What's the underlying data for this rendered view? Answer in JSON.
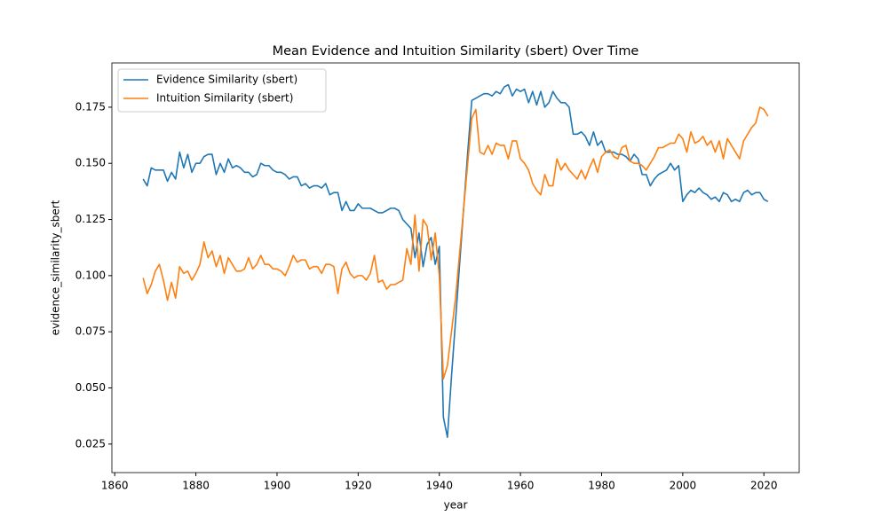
{
  "chart_data": {
    "type": "line",
    "title": "Mean Evidence and Intuition Similarity (sbert) Over Time",
    "xlabel": "year",
    "ylabel": "evidence_similarity_sbert",
    "x": [
      1867,
      1868,
      1869,
      1870,
      1871,
      1872,
      1873,
      1874,
      1875,
      1876,
      1877,
      1878,
      1879,
      1880,
      1881,
      1882,
      1883,
      1884,
      1885,
      1886,
      1887,
      1888,
      1889,
      1890,
      1891,
      1892,
      1893,
      1894,
      1895,
      1896,
      1897,
      1898,
      1899,
      1900,
      1901,
      1902,
      1903,
      1904,
      1905,
      1906,
      1907,
      1908,
      1909,
      1910,
      1911,
      1912,
      1913,
      1914,
      1915,
      1916,
      1917,
      1918,
      1919,
      1920,
      1921,
      1922,
      1923,
      1924,
      1925,
      1926,
      1927,
      1928,
      1929,
      1930,
      1931,
      1932,
      1933,
      1934,
      1935,
      1936,
      1937,
      1938,
      1939,
      1940,
      1941,
      1942,
      1943,
      1944,
      1945,
      1946,
      1947,
      1948,
      1949,
      1950,
      1951,
      1952,
      1953,
      1954,
      1955,
      1956,
      1957,
      1958,
      1959,
      1960,
      1961,
      1962,
      1963,
      1964,
      1965,
      1966,
      1967,
      1968,
      1969,
      1970,
      1971,
      1972,
      1973,
      1974,
      1975,
      1976,
      1977,
      1978,
      1979,
      1980,
      1981,
      1982,
      1983,
      1984,
      1985,
      1986,
      1987,
      1988,
      1989,
      1990,
      1991,
      1992,
      1993,
      1994,
      1995,
      1996,
      1997,
      1998,
      1999,
      2000,
      2001,
      2002,
      2003,
      2004,
      2005,
      2006,
      2007,
      2008,
      2009,
      2010,
      2011,
      2012,
      2013,
      2014,
      2015,
      2016,
      2017,
      2018,
      2019,
      2020,
      2021
    ],
    "series": [
      {
        "name": "Evidence Similarity (sbert)",
        "color": "#1f77b4",
        "values": [
          0.143,
          0.14,
          0.148,
          0.147,
          0.147,
          0.147,
          0.142,
          0.146,
          0.143,
          0.155,
          0.148,
          0.154,
          0.146,
          0.15,
          0.15,
          0.153,
          0.154,
          0.154,
          0.145,
          0.15,
          0.146,
          0.152,
          0.148,
          0.149,
          0.148,
          0.146,
          0.146,
          0.144,
          0.145,
          0.15,
          0.149,
          0.149,
          0.147,
          0.146,
          0.146,
          0.145,
          0.143,
          0.144,
          0.144,
          0.14,
          0.141,
          0.139,
          0.14,
          0.14,
          0.139,
          0.141,
          0.136,
          0.137,
          0.137,
          0.129,
          0.133,
          0.129,
          0.129,
          0.132,
          0.13,
          0.13,
          0.13,
          0.129,
          0.128,
          0.128,
          0.129,
          0.13,
          0.13,
          0.129,
          0.125,
          0.123,
          0.121,
          0.108,
          0.119,
          0.104,
          0.114,
          0.117,
          0.105,
          0.113,
          0.037,
          0.028,
          0.055,
          0.08,
          0.105,
          0.13,
          0.155,
          0.178,
          0.179,
          0.18,
          0.181,
          0.181,
          0.18,
          0.182,
          0.181,
          0.184,
          0.185,
          0.18,
          0.183,
          0.182,
          0.183,
          0.177,
          0.182,
          0.176,
          0.182,
          0.175,
          0.177,
          0.182,
          0.179,
          0.177,
          0.177,
          0.175,
          0.163,
          0.163,
          0.164,
          0.162,
          0.158,
          0.164,
          0.158,
          0.16,
          0.155,
          0.155,
          0.155,
          0.154,
          0.154,
          0.153,
          0.151,
          0.154,
          0.152,
          0.145,
          0.145,
          0.14,
          0.143,
          0.145,
          0.146,
          0.147,
          0.15,
          0.147,
          0.149,
          0.133,
          0.136,
          0.138,
          0.137,
          0.139,
          0.137,
          0.136,
          0.134,
          0.135,
          0.133,
          0.137,
          0.136,
          0.133,
          0.134,
          0.133,
          0.137,
          0.138,
          0.136,
          0.137,
          0.137,
          0.134,
          0.133
        ]
      },
      {
        "name": "Intuition Similarity (sbert)",
        "color": "#ff7f0e",
        "values": [
          0.099,
          0.092,
          0.096,
          0.102,
          0.105,
          0.098,
          0.089,
          0.097,
          0.09,
          0.104,
          0.101,
          0.102,
          0.098,
          0.101,
          0.105,
          0.115,
          0.108,
          0.111,
          0.104,
          0.109,
          0.101,
          0.108,
          0.105,
          0.102,
          0.102,
          0.103,
          0.108,
          0.103,
          0.105,
          0.109,
          0.105,
          0.105,
          0.103,
          0.103,
          0.102,
          0.1,
          0.104,
          0.109,
          0.106,
          0.107,
          0.107,
          0.103,
          0.104,
          0.104,
          0.101,
          0.105,
          0.105,
          0.104,
          0.092,
          0.103,
          0.106,
          0.101,
          0.099,
          0.1,
          0.1,
          0.098,
          0.101,
          0.109,
          0.097,
          0.098,
          0.094,
          0.096,
          0.096,
          0.097,
          0.098,
          0.112,
          0.105,
          0.127,
          0.102,
          0.125,
          0.122,
          0.107,
          0.119,
          0.1,
          0.054,
          0.06,
          0.075,
          0.09,
          0.11,
          0.13,
          0.15,
          0.17,
          0.174,
          0.155,
          0.154,
          0.158,
          0.154,
          0.159,
          0.158,
          0.158,
          0.152,
          0.16,
          0.16,
          0.152,
          0.15,
          0.147,
          0.141,
          0.138,
          0.136,
          0.145,
          0.14,
          0.14,
          0.152,
          0.147,
          0.15,
          0.147,
          0.145,
          0.143,
          0.147,
          0.143,
          0.148,
          0.152,
          0.146,
          0.153,
          0.155,
          0.156,
          0.153,
          0.152,
          0.157,
          0.158,
          0.151,
          0.15,
          0.15,
          0.149,
          0.147,
          0.15,
          0.153,
          0.157,
          0.157,
          0.158,
          0.159,
          0.159,
          0.163,
          0.161,
          0.155,
          0.164,
          0.159,
          0.16,
          0.162,
          0.158,
          0.16,
          0.155,
          0.16,
          0.152,
          0.161,
          0.158,
          0.155,
          0.152,
          0.16,
          0.163,
          0.166,
          0.168,
          0.175,
          0.174,
          0.171
        ]
      }
    ],
    "xlim": [
      1859.3,
      2028.7
    ],
    "ylim": [
      0.0123,
      0.1947
    ],
    "xticks": [
      1860,
      1880,
      1900,
      1920,
      1940,
      1960,
      1980,
      2000,
      2020
    ],
    "yticks": [
      0.025,
      {
        "value": 0.05,
        "label": "0.050"
      },
      0.075,
      {
        "value": 0.1,
        "label": "0.100"
      },
      0.125,
      {
        "value": 0.15,
        "label": "0.150"
      },
      0.175
    ],
    "legend": "upper left"
  }
}
